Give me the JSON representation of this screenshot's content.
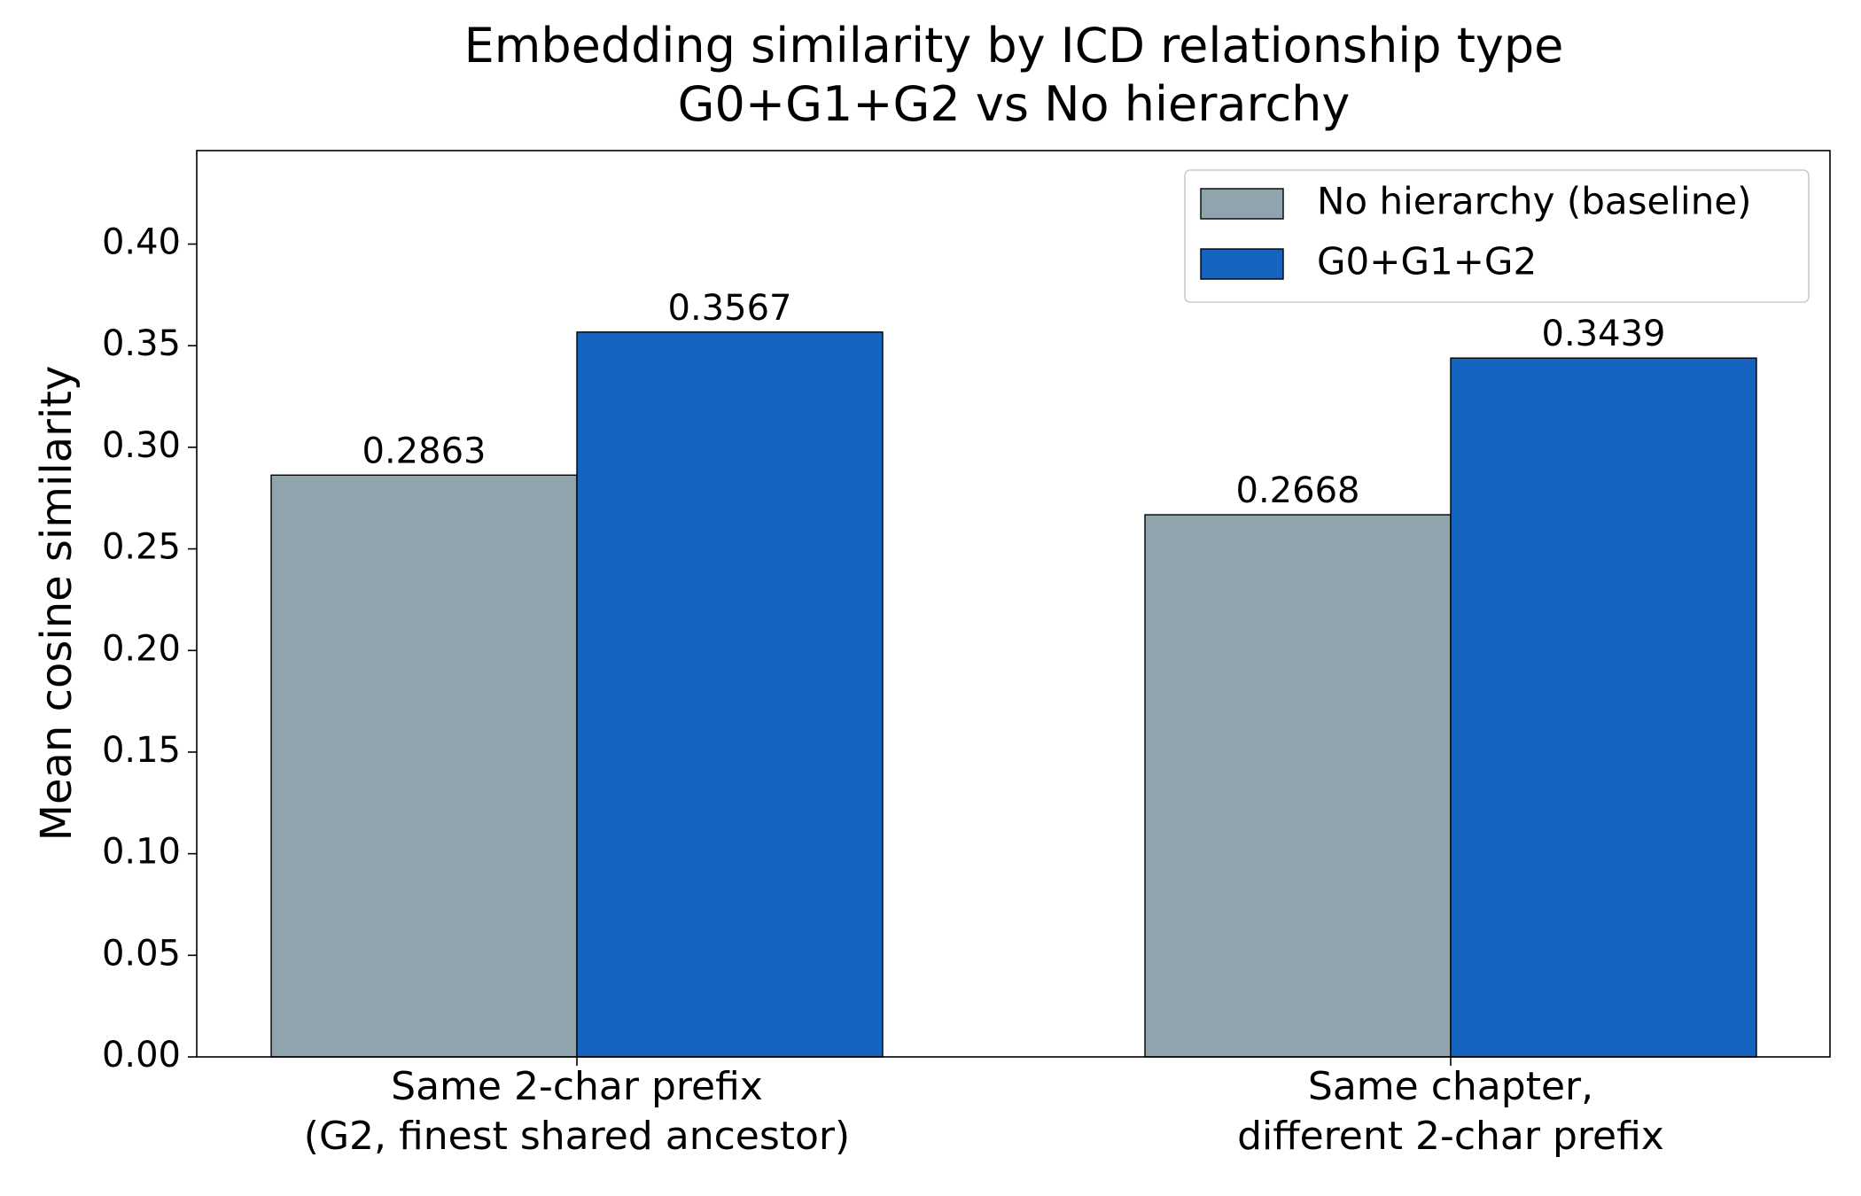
{
  "chart_data": {
    "type": "bar",
    "title": "Embedding similarity by ICD relationship type\nG0+G1+G2 vs No hierarchy",
    "y_label": "Mean cosine similarity",
    "categories": [
      "Same 2-char prefix\n(G2, finest shared ancestor)",
      "Same chapter,\ndifferent 2-char prefix"
    ],
    "series": [
      {
        "name": "No hierarchy (baseline)",
        "color": "#90a4ae",
        "values": [
          0.2863,
          0.2668
        ]
      },
      {
        "name": "G0+G1+G2",
        "color": "#1565c0",
        "values": [
          0.3567,
          0.3439
        ]
      }
    ],
    "ylim": [
      0,
      0.446
    ],
    "yticks": [
      {
        "value": 0,
        "label": "0.00"
      },
      {
        "value": 0.05,
        "label": "0.05"
      },
      {
        "value": 0.1,
        "label": "0.10"
      },
      {
        "value": 0.15,
        "label": "0.15"
      },
      {
        "value": 0.2,
        "label": "0.20"
      },
      {
        "value": 0.25,
        "label": "0.25"
      },
      {
        "value": 0.3,
        "label": "0.30"
      },
      {
        "value": 0.35,
        "label": "0.35"
      },
      {
        "value": 0.4,
        "label": "0.40"
      }
    ],
    "legend": "upper right"
  }
}
